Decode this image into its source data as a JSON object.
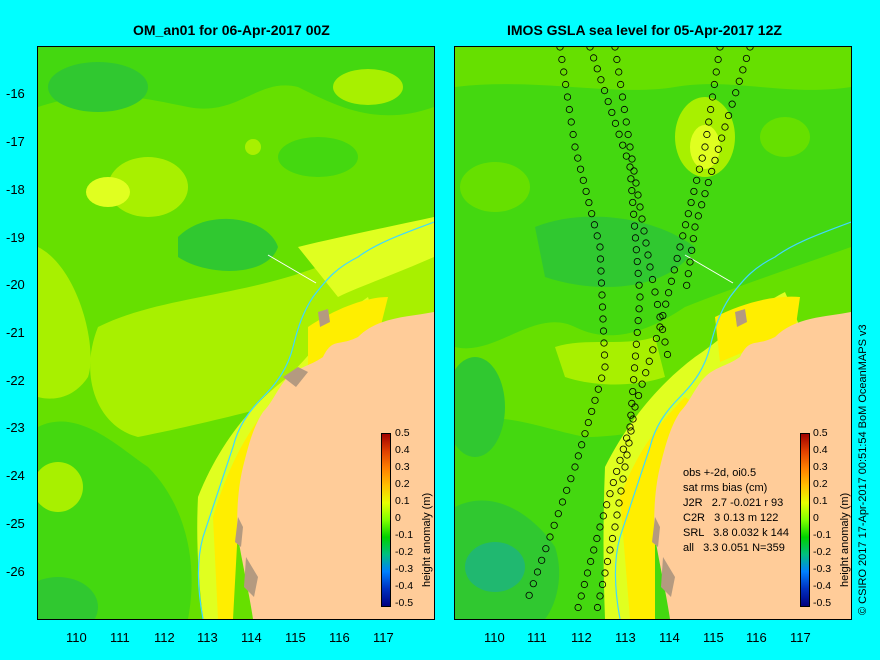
{
  "left_panel": {
    "title": "OM_an01 for 06-Apr-2017 00Z",
    "colorbar_label": "height anomaly (m)"
  },
  "right_panel": {
    "title": "IMOS GSLA sea level  for 05-Apr-2017 12Z",
    "colorbar_label": "height anomaly (m)",
    "stats": {
      "line1": "obs +-2d, oi0.5",
      "line2": "sat rms bias (cm)",
      "line3": "J2R   2.7 -0.021 r 93",
      "line4": "C2R   3 0.13 m 122",
      "line5": "SRL   3.8 0.032 k 144",
      "line6": "all   3.3 0.051 N=359"
    }
  },
  "axes": {
    "y_ticks": [
      "-16",
      "-17",
      "-18",
      "-19",
      "-20",
      "-21",
      "-22",
      "-23",
      "-24",
      "-25",
      "-26"
    ],
    "x_ticks": [
      "110",
      "111",
      "112",
      "113",
      "114",
      "115",
      "116",
      "117"
    ]
  },
  "colorbar": {
    "ticks": [
      "0.5",
      "0.4",
      "0.3",
      "0.2",
      "0.1",
      "0",
      "-0.1",
      "-0.2",
      "-0.3",
      "-0.4",
      "-0.5"
    ],
    "colors": [
      "#a00000",
      "#e04000",
      "#ff8000",
      "#ffc000",
      "#e8ff00",
      "#80ff00",
      "#00d000",
      "#00c080",
      "#0080ff",
      "#0030c0",
      "#000080"
    ]
  },
  "credit": "© CSIRO 2017   17-Apr-2017 00:51:54 BoM OceanMAPS v3",
  "palette": {
    "land": "#ffcc99",
    "reef": "#b49a80",
    "deep_green": "#30c830",
    "mid_green": "#66e000",
    "light_green": "#a8f000",
    "yellow_green": "#e0ff20",
    "yellow": "#ffee00",
    "cyan_line": "#40d8ff"
  }
}
